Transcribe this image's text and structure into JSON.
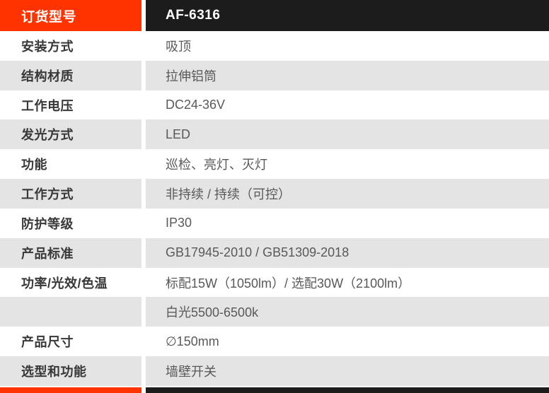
{
  "table": {
    "header": {
      "label": "订货型号",
      "value": "AF-6316"
    },
    "rows": [
      {
        "label": "安装方式",
        "value": "吸顶"
      },
      {
        "label": "结构材质",
        "value": "拉伸铝筒"
      },
      {
        "label": "工作电压",
        "value": "DC24-36V"
      },
      {
        "label": "发光方式",
        "value": "LED"
      },
      {
        "label": "功能",
        "value": "巡检、亮灯、灭灯"
      },
      {
        "label": "工作方式",
        "value": "非持续 / 持续（可控）"
      },
      {
        "label": "防护等级",
        "value": "IP30"
      },
      {
        "label": "产品标准",
        "value": "GB17945-2010 / GB51309-2018"
      },
      {
        "label": "功率/光效/色温",
        "value": "标配15W（1050lm）/ 选配30W（2100lm）"
      },
      {
        "label": "",
        "value": "白光5500-6500k"
      },
      {
        "label": "产品尺寸",
        "value": "∅150mm"
      },
      {
        "label": "选型和功能",
        "value": "墙壁开关"
      }
    ],
    "colors": {
      "accent_orange": "#FF3300",
      "header_black": "#1C1C1C",
      "row_gray": "#E4E4E4",
      "label_text": "#383838",
      "value_text": "#595959",
      "header_text": "#FFFFFF"
    }
  }
}
